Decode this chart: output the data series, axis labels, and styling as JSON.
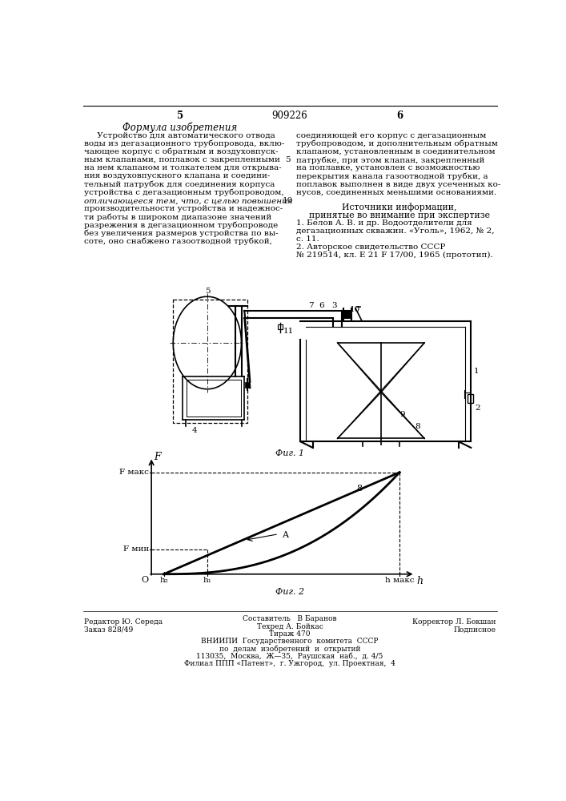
{
  "page_number_center": "909226",
  "page_left": "5",
  "page_right": "6",
  "title_italic": "Формула изобретения",
  "col_left_text": [
    "     Устройство для автоматического отвода",
    "воды из дегазационного трубопровода, вклю-",
    "чающее корпус с обратным и воздуховпуск-",
    "ным клапанами, поплавок с закрепленными",
    "на нем клапаном и толкателем для открыва-",
    "ния воздуховпускного клапана и соедини-",
    "тельный патрубок для соединения корпуса",
    "устройства с дегазационным трубопроводом,",
    "отличающееся тем, что, с целью повышения",
    "производительности устройства и надежнос-",
    "ти работы в широком диапазоне значений",
    "разрежения в дегазационном трубопроводе",
    "без увеличения размеров устройства по вы-",
    "соте, оно снабжено газоотводной трубкой,"
  ],
  "col_right_text": [
    "соединяющей его корпус с дегазационным",
    "трубопроводом, и дополнительным обратным",
    "клапаном, установленным в соединительном",
    "патрубке, при этом клапан, закрепленный",
    "на поплавке, установлен с возможностью",
    "перекрытия канала газоотводной трубки, а",
    "поплавок выполнен в виде двух усеченных ко-",
    "нусов, соединенных меньшими основаниями."
  ],
  "sources_title": "Источники информации,",
  "sources_subtitle": "принятые во внимание при экспертизе",
  "source1": "1. Белов А. В. и др. Водоотделители для",
  "source1b": "дегазационных скважин. «Уголь», 1962, № 2,",
  "source1c": "с. 11.",
  "source2": "2. Авторское свидетельство СССР",
  "source2b": "№ 219514, кл. Е 21 F 17/00, 1965 (прототип).",
  "fig1_caption": "Фиг. 1",
  "fig2_caption": "Фиг. 2",
  "footer_col1_line1": "Редактор Ю. Середа",
  "footer_col1_line2": "Заказ 828/49",
  "footer_col2_line0": "Составитель   В Баранов",
  "footer_col2_line1": "Техред А. Бойкас",
  "footer_col2_line2": "Тираж 470",
  "footer_col2_line3": "ВНИИПИ  Государственного  комитета  СССР",
  "footer_col2_line4": "по  делам  изобретений  и  открытий",
  "footer_col2_line5": "113035,  Москва,  Ж—35,  Раушская  наб.,  д. 4/5",
  "footer_col2_line6": "Филиал ППП «Патент»,  г. Ужгород,  ул. Проектная,  4",
  "footer_col3_line1": "Корректор Л. Бокшан",
  "footer_col3_line2": "Подписное",
  "bg_color": "#ffffff",
  "text_color": "#000000"
}
